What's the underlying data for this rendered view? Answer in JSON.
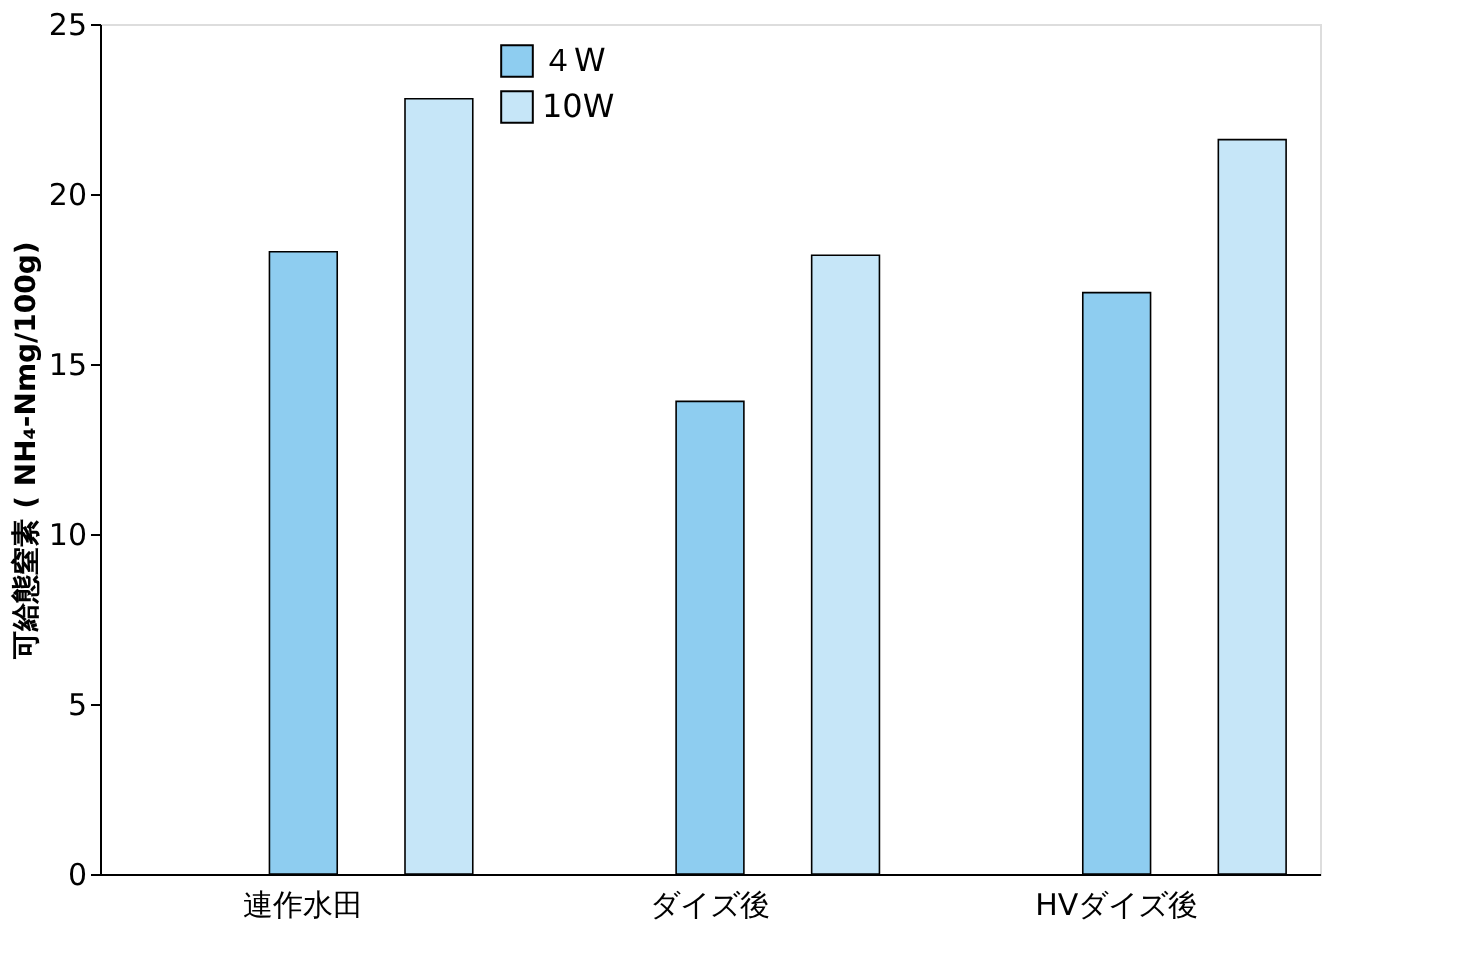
{
  "chart_data": {
    "type": "bar",
    "categories": [
      "連作水田",
      "ダイズ後",
      "HVダイズ後"
    ],
    "ylabel": "可給態窒素 ( NH₄-Nmg/100g)",
    "ylim": [
      0,
      25
    ],
    "yticks": [
      0,
      5,
      10,
      15,
      20,
      25
    ],
    "legend": "top",
    "grid": false,
    "series": [
      {
        "name": "４W",
        "color": "#8ecdf0",
        "values": [
          18.3,
          13.9,
          17.1
        ]
      },
      {
        "name": "10W",
        "color": "#c6e6f8",
        "values": [
          22.8,
          18.2,
          21.6
        ]
      }
    ]
  }
}
